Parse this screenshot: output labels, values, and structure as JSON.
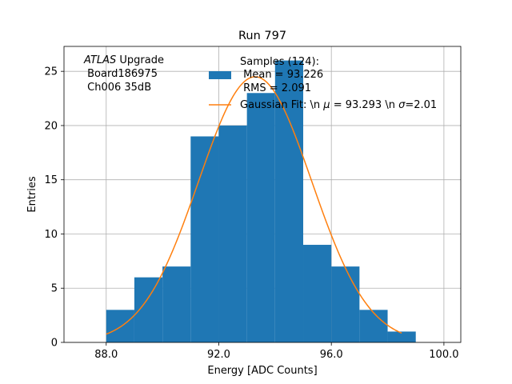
{
  "chart_data": {
    "type": "bar",
    "title": "Run 797",
    "xlabel": "Energy [ADC Counts]",
    "ylabel": "Entries",
    "xlim": [
      86.5,
      100.6
    ],
    "ylim": [
      0,
      27.3
    ],
    "xticks": [
      88.0,
      92.0,
      96.0,
      100.0
    ],
    "xtick_labels": [
      "88.0",
      "92.0",
      "96.0",
      "100.0"
    ],
    "yticks": [
      0,
      5,
      10,
      15,
      20,
      25
    ],
    "ytick_labels": [
      "0",
      "5",
      "10",
      "15",
      "20",
      "25"
    ],
    "grid": true,
    "histogram": {
      "color": "#1f77b4",
      "bins": [
        {
          "x0": 88,
          "x1": 89,
          "count": 3
        },
        {
          "x0": 89,
          "x1": 90,
          "count": 6
        },
        {
          "x0": 90,
          "x1": 91,
          "count": 7
        },
        {
          "x0": 91,
          "x1": 92,
          "count": 19
        },
        {
          "x0": 92,
          "x1": 93,
          "count": 20
        },
        {
          "x0": 93,
          "x1": 94,
          "count": 23
        },
        {
          "x0": 94,
          "x1": 95,
          "count": 26
        },
        {
          "x0": 95,
          "x1": 96,
          "count": 9
        },
        {
          "x0": 96,
          "x1": 97,
          "count": 7
        },
        {
          "x0": 97,
          "x1": 98,
          "count": 3
        },
        {
          "x0": 98,
          "x1": 99,
          "count": 1
        }
      ]
    },
    "fit": {
      "color": "#ff7f0e",
      "x_range": [
        88.0,
        98.5
      ],
      "mu": 93.293,
      "sigma": 2.01,
      "amplitude": 24.5
    },
    "annotation": {
      "atlas_word": "ATLAS",
      "atlas_rest": " Upgrade",
      "line2": " Board186975",
      "line3": " Ch006 35dB"
    },
    "legend": {
      "placement": "upper-center",
      "hist_lines": [
        "Samples (124):",
        " Mean = 93.226",
        " RMS = 2.091"
      ],
      "fit_label_pre": "Gaussian Fit: \\n ",
      "fit_mu_sym": "μ",
      "fit_label_mid": " = 93.293 \\n ",
      "fit_sigma_sym": "σ",
      "fit_label_post": "=2.01"
    }
  }
}
